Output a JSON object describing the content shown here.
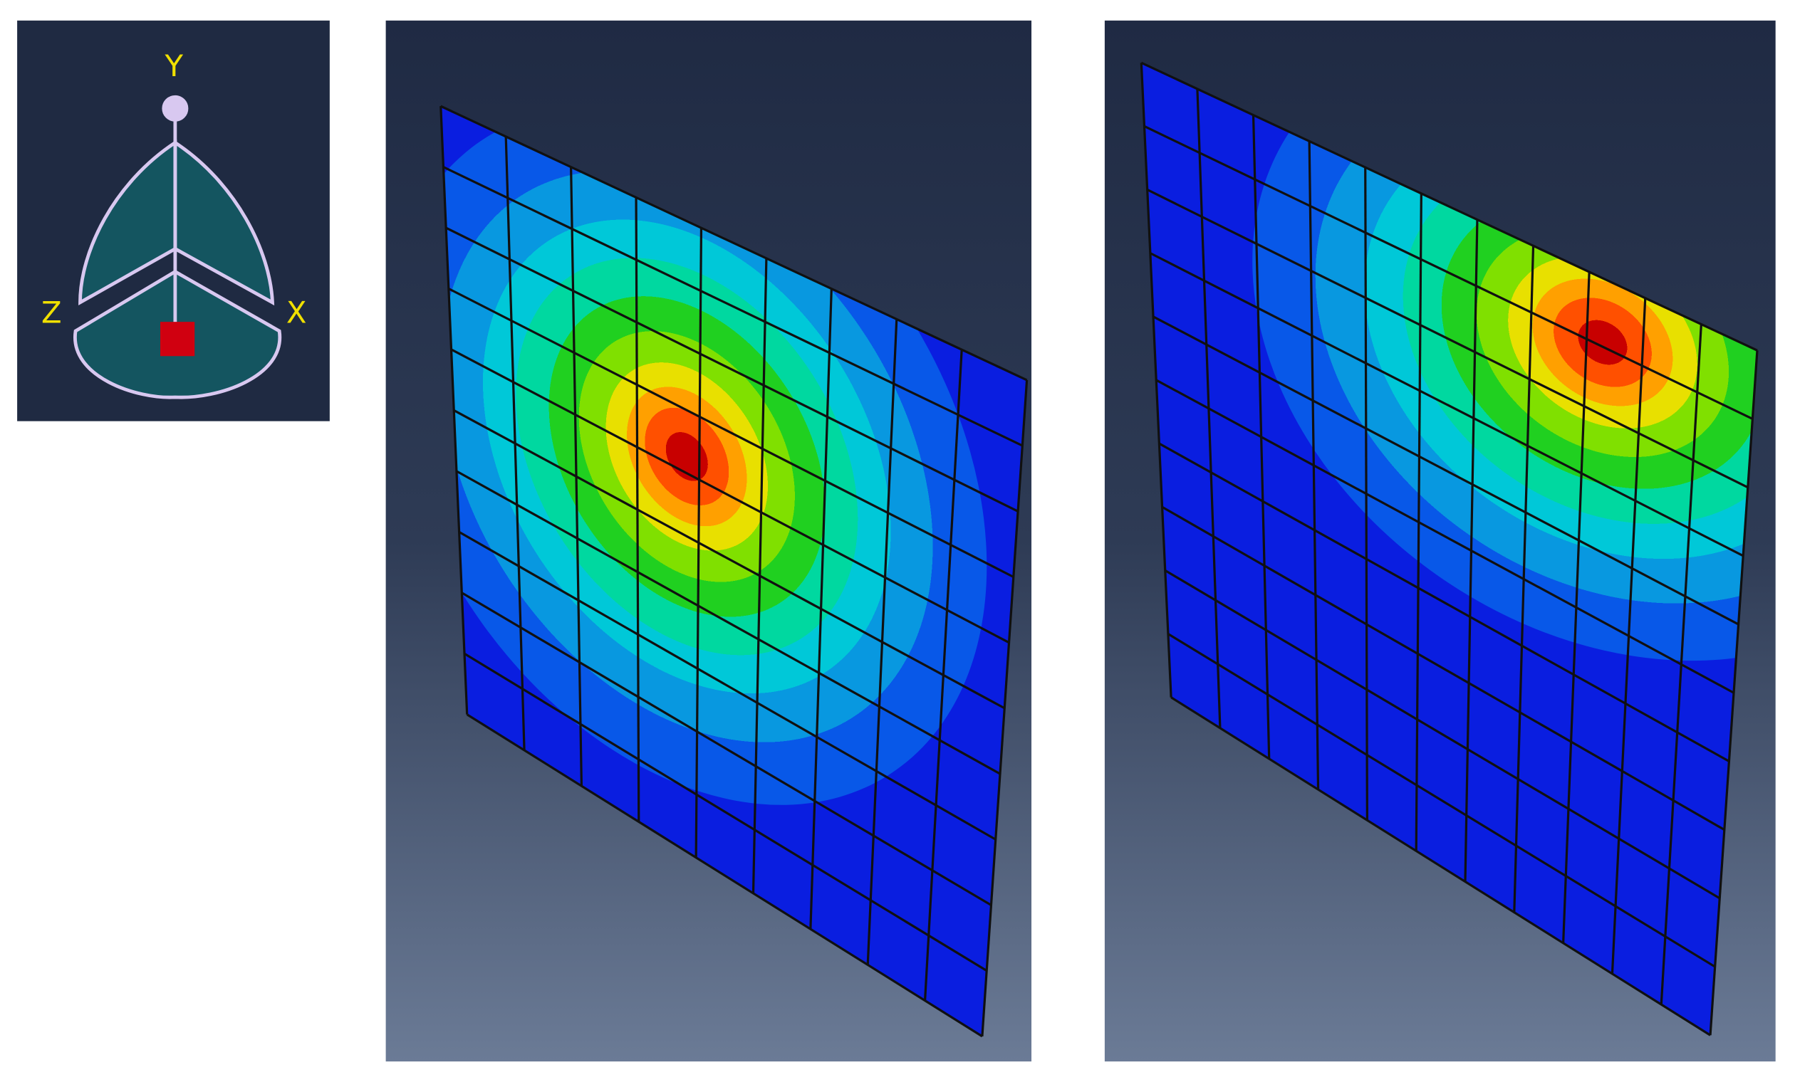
{
  "triad": {
    "y_label": "Y",
    "z_label": "Z",
    "x_label": "X"
  }
}
